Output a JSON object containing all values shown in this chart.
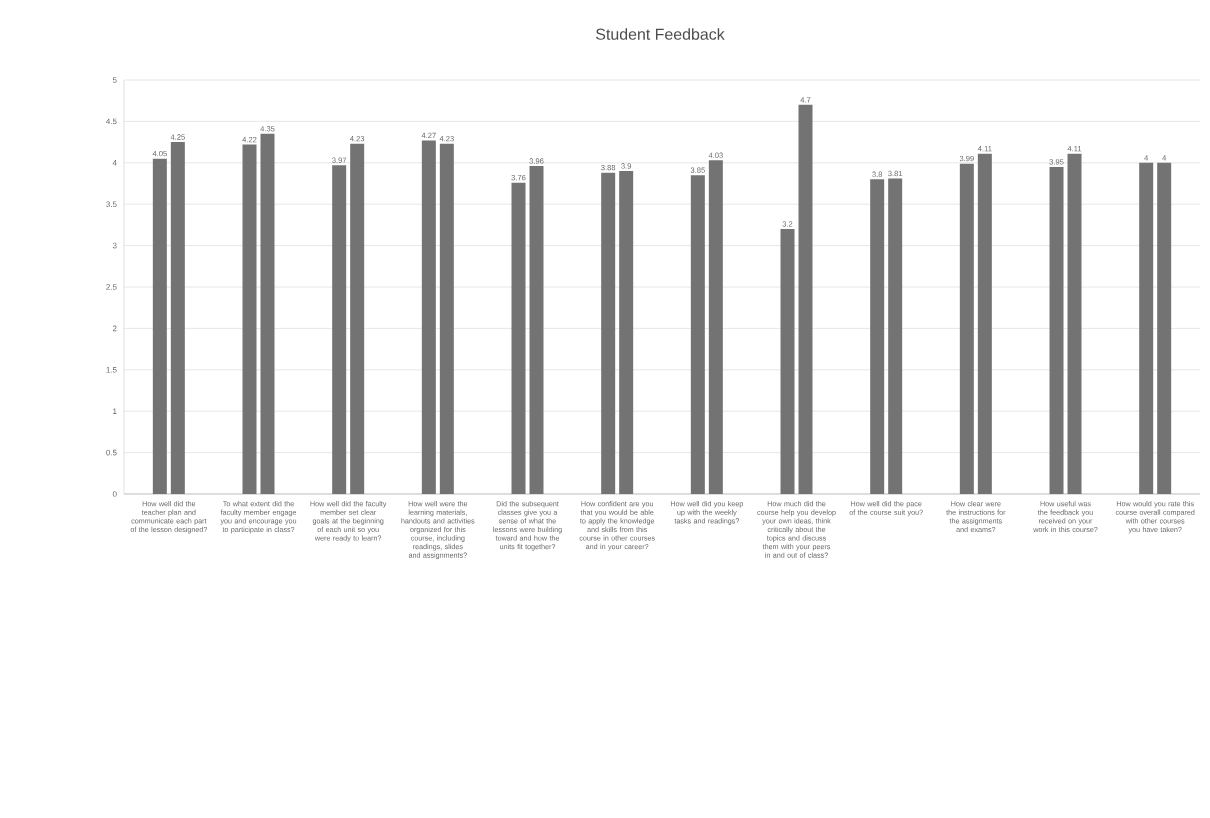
{
  "chart_data": {
    "type": "bar",
    "title": "Student Feedback",
    "categories": [
      "How well did the teacher plan and communicate each part of the lesson designed?",
      "To what extent did the faculty member engage you and encourage you to participate in class?",
      "How well did the faculty member set clear goals at the beginning of each unit so you were ready to learn?",
      "How well were the learning materials, handouts and activities organized for this course, including readings, slides and assignments?",
      "Did the subsequent classes give you a sense of what the lessons were building toward and how the units fit together?",
      "How confident are you that you would be able to apply the knowledge and skills from this course in other courses and in your career?",
      "How well did you keep up with the weekly tasks and readings?",
      "How much did the course help you develop your own ideas, think critically about the topics and discuss them with your peers in and out of class?",
      "How well did the pace of the course suit you?",
      "How clear were the instructions for the assignments and exams?",
      "How useful was the feedback you received on your work in this course?",
      "How would you rate this course overall compared with other courses you have taken?"
    ],
    "series": [
      {
        "color": "#737373",
        "values": [
          4.05,
          4.22,
          3.97,
          4.27,
          3.76,
          3.88,
          3.85,
          3.2,
          3.8,
          3.99,
          3.95,
          4
        ]
      },
      {
        "color": "#737373",
        "values": [
          4.25,
          4.35,
          4.23,
          4.23,
          3.96,
          3.9,
          4.03,
          4.7,
          3.81,
          4.11,
          4.11,
          4
        ]
      }
    ],
    "ylim": [
      0,
      5
    ],
    "yticks": [
      0,
      0.5,
      1,
      1.5,
      2,
      2.5,
      3,
      3.5,
      4,
      4.5,
      5
    ],
    "grid": "y",
    "data_labels": true
  }
}
